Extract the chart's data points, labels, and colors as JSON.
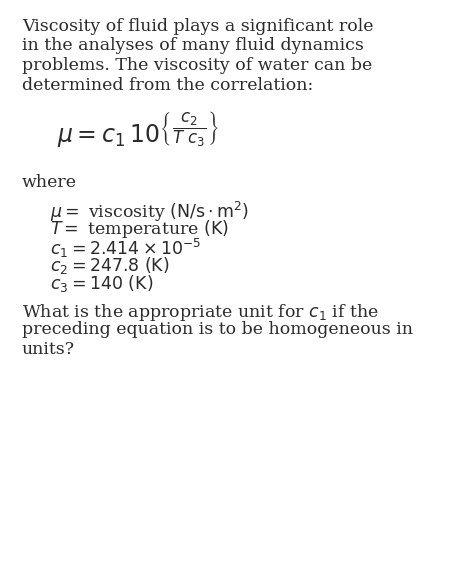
{
  "bg_color": "#ffffff",
  "text_color": "#2b2b2b",
  "para1_lines": [
    "Viscosity of fluid plays a significant role",
    "in the analyses of many fluid dynamics",
    "problems. The viscosity of water can be",
    "determined from the correlation:"
  ],
  "where_label": "where",
  "def_lines": [
    "$\\mu = $ viscosity $\\mathrm{(N/s \\cdot m^2)}$",
    "$T = $ temperature $\\mathrm{(K)}$",
    "$c_1 = 2.414 \\times 10^{-5}$",
    "$c_2 = 247.8\\ \\mathrm{(K)}$",
    "$c_3 = 140\\ \\mathrm{(K)}$"
  ],
  "question_lines": [
    "What is the appropriate unit for $c_1$ if the",
    "preceding equation is to be homogeneous in",
    "units?"
  ],
  "font_size_body": 12.5,
  "font_size_formula": 14,
  "font_size_defs": 12.5,
  "figwidth": 4.77,
  "figheight": 5.86,
  "dpi": 100
}
